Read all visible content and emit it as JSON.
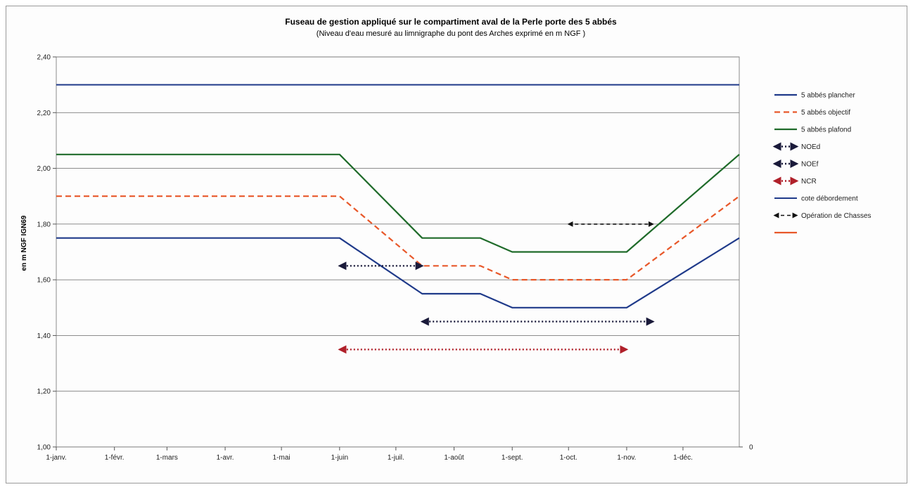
{
  "chart_data": {
    "type": "line",
    "title": "Fuseau de gestion appliqué sur le compartiment aval de la Perle  porte des 5 abbés",
    "subtitle": "(Niveau d'eau mesuré au limnigraphe du pont des Arches exprimé en m NGF )",
    "ylabel": "en m NGF IGN69",
    "xlabel": "",
    "ylim": [
      1.0,
      2.4
    ],
    "y_ticks": [
      "1,00",
      "1,20",
      "1,40",
      "1,60",
      "1,80",
      "2,00",
      "2,20",
      "2,40"
    ],
    "secondary_y_tick": "0",
    "x_ticks": [
      "1-janv.",
      "1-févr.",
      "1-mars",
      "1-avr.",
      "1-mai",
      "1-juin",
      "1-juil.",
      "1-août",
      "1-sept.",
      "1-oct.",
      "1-nov.",
      "1-déc."
    ],
    "grid": true,
    "legend_position": "right",
    "series": [
      {
        "name": "5 abbés plancher",
        "color": "#1f3a8a",
        "style": "solid",
        "x": [
          "1-janv.",
          "1-juin",
          "15-juil.",
          "15-août",
          "1-sept.",
          "1-nov.",
          "31-déc."
        ],
        "y": [
          1.75,
          1.75,
          1.55,
          1.55,
          1.5,
          1.5,
          1.75
        ]
      },
      {
        "name": "5 abbés objectif",
        "color": "#e8582a",
        "style": "dashed",
        "x": [
          "1-janv.",
          "1-juin",
          "15-juil.",
          "15-août",
          "1-sept.",
          "1-nov.",
          "31-déc."
        ],
        "y": [
          1.9,
          1.9,
          1.65,
          1.65,
          1.6,
          1.6,
          1.9
        ]
      },
      {
        "name": "5 abbés plafond",
        "color": "#1f6b2a",
        "style": "solid",
        "x": [
          "1-janv.",
          "1-juin",
          "15-juil.",
          "15-août",
          "1-sept.",
          "1-nov.",
          "31-déc."
        ],
        "y": [
          2.05,
          2.05,
          1.75,
          1.75,
          1.7,
          1.7,
          2.05
        ]
      },
      {
        "name": "NOEd",
        "color": "#1a1a3a",
        "style": "dotted-arrow",
        "x": [
          "1-juin",
          "15-juil."
        ],
        "y": [
          1.65,
          1.65
        ]
      },
      {
        "name": "NOEf",
        "color": "#1a1a3a",
        "style": "dotted-arrow",
        "x": [
          "15-juil.",
          "15-nov."
        ],
        "y": [
          1.45,
          1.45
        ]
      },
      {
        "name": "NCR",
        "color": "#b0202a",
        "style": "dotted-arrow",
        "x": [
          "1-juin",
          "1-nov."
        ],
        "y": [
          1.35,
          1.35
        ]
      },
      {
        "name": "cote débordement",
        "color": "#1f3a8a",
        "style": "solid-thin",
        "x": [
          "1-janv.",
          "31-déc."
        ],
        "y": [
          2.3,
          2.3
        ]
      },
      {
        "name": "Opération de Chasses",
        "color": "#111111",
        "style": "dashed-arrow",
        "x": [
          "1-oct.",
          "15-nov."
        ],
        "y": [
          1.8,
          1.8
        ]
      },
      {
        "name": "",
        "color": "#e8582a",
        "style": "legend-only"
      }
    ]
  }
}
